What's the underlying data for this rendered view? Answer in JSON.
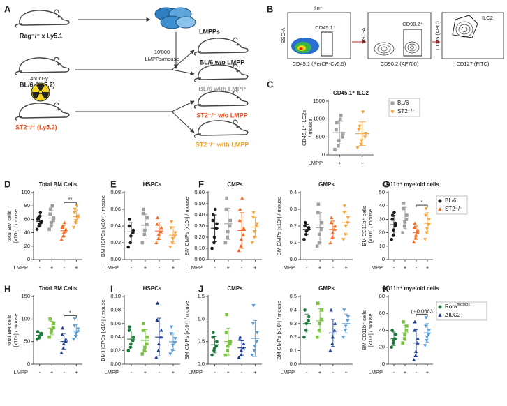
{
  "panel_labels": [
    "A",
    "B",
    "C",
    "D",
    "E",
    "F",
    "G",
    "H",
    "I",
    "J",
    "K"
  ],
  "diagram": {
    "donor": "Rag⁻/⁻ x Ly5.1",
    "cells": "LMPPs",
    "dose_1": "10'000",
    "dose_2": "LMPPs/mouse",
    "irradiation": "450cGy",
    "host_1": "BL/6 (Ly5.2)",
    "host_2": "ST2⁻/⁻ (Ly5.2)",
    "outcomes": [
      "BL/6 w/o LMPP",
      "BL/6 with LMPP",
      "ST2⁻/⁻ w/o LMPP",
      "ST2⁻/⁻ with LMPP"
    ]
  },
  "flow": {
    "title": "lin⁻",
    "plots": [
      {
        "gate": "CD45.1⁺",
        "ylabel": "SSC-A",
        "xlabel": "CD45.1 (PerCP-Cy5.5)"
      },
      {
        "gate": "CD90.2⁺",
        "ylabel": "SSC-A",
        "xlabel": "CD90.2 (AF700)"
      },
      {
        "gate": "ILC2",
        "ylabel": "CD25 (APC)",
        "xlabel": "CD127 (FITC)"
      }
    ]
  },
  "chart_data": [
    {
      "type": "strip",
      "title": "Total BM Cells",
      "ylabel": [
        "total BM cells",
        "[x10⁶] / mouse"
      ],
      "xlabel": "LMPP",
      "ylim": [
        0,
        100
      ],
      "yticks": [
        0,
        20,
        40,
        60,
        80,
        100
      ],
      "annotation": "**",
      "groups": [
        {
          "category": "-",
          "color": "#1a1a1a",
          "marker": "circle",
          "values": [
            45,
            50,
            52,
            55,
            57,
            60,
            62,
            65,
            70
          ],
          "mean": 57,
          "sd": 7
        },
        {
          "category": "+",
          "color": "#9e9e9e",
          "marker": "square",
          "values": [
            45,
            50,
            55,
            58,
            62,
            68,
            75,
            80
          ],
          "mean": 62,
          "sd": 11
        },
        {
          "category": "-",
          "color": "#f26b21",
          "marker": "triangle",
          "values": [
            30,
            35,
            40,
            42,
            45,
            48,
            50,
            55
          ],
          "mean": 43,
          "sd": 8
        },
        {
          "category": "+",
          "color": "#f7a43a",
          "marker": "invtriangle",
          "values": [
            48,
            55,
            58,
            62,
            65,
            70,
            75,
            80
          ],
          "mean": 64,
          "sd": 10
        }
      ]
    },
    {
      "type": "strip",
      "title": "HSPCs",
      "ylabel": [
        "BM HSPCs [x10⁶] / mouse"
      ],
      "xlabel": "LMPP",
      "ylim": [
        0,
        0.08
      ],
      "yticks": [
        {
          "value": 0,
          "label": "0.00"
        },
        {
          "value": 0.02,
          "label": "0.02"
        },
        {
          "value": 0.04,
          "label": "0.04"
        },
        {
          "value": 0.06,
          "label": "0.06"
        },
        {
          "value": 0.08,
          "label": "0.08"
        }
      ],
      "groups": [
        {
          "category": "-",
          "color": "#1a1a1a",
          "marker": "circle",
          "values": [
            0.015,
            0.02,
            0.028,
            0.032,
            0.035,
            0.04,
            0.048
          ],
          "mean": 0.033,
          "sd": 0.011
        },
        {
          "category": "+",
          "color": "#9e9e9e",
          "marker": "square",
          "values": [
            0.02,
            0.03,
            0.035,
            0.042,
            0.05,
            0.055,
            0.06
          ],
          "mean": 0.041,
          "sd": 0.013
        },
        {
          "category": "-",
          "color": "#f26b21",
          "marker": "triangle",
          "values": [
            0.02,
            0.025,
            0.03,
            0.033,
            0.038,
            0.042,
            0.05
          ],
          "mean": 0.034,
          "sd": 0.01
        },
        {
          "category": "+",
          "color": "#f7a43a",
          "marker": "invtriangle",
          "values": [
            0.015,
            0.02,
            0.025,
            0.028,
            0.032,
            0.038,
            0.045
          ],
          "mean": 0.029,
          "sd": 0.01
        }
      ]
    },
    {
      "type": "strip",
      "title": "CMPs",
      "ylabel": [
        "BM CMPs [x10⁶] / mouse"
      ],
      "xlabel": "LMPP",
      "ylim": [
        0,
        0.6
      ],
      "yticks": [
        {
          "value": 0,
          "label": "0.00"
        },
        {
          "value": 0.1,
          "label": "0.10"
        },
        {
          "value": 0.2,
          "label": "0.20"
        },
        {
          "value": 0.3,
          "label": "0.30"
        },
        {
          "value": 0.4,
          "label": "0.40"
        },
        {
          "value": 0.5,
          "label": "0.50"
        },
        {
          "value": 0.6,
          "label": "0.60"
        }
      ],
      "groups": [
        {
          "category": "-",
          "color": "#1a1a1a",
          "marker": "circle",
          "values": [
            0.1,
            0.15,
            0.2,
            0.28,
            0.32,
            0.35,
            0.4,
            0.45
          ],
          "mean": 0.28,
          "sd": 0.12
        },
        {
          "category": "+",
          "color": "#9e9e9e",
          "marker": "square",
          "values": [
            0.15,
            0.2,
            0.25,
            0.3,
            0.35,
            0.45,
            0.55
          ],
          "mean": 0.32,
          "sd": 0.14
        },
        {
          "category": "-",
          "color": "#f26b21",
          "marker": "triangle",
          "values": [
            0.08,
            0.12,
            0.18,
            0.22,
            0.28,
            0.35,
            0.45,
            0.55
          ],
          "mean": 0.26,
          "sd": 0.16
        },
        {
          "category": "+",
          "color": "#f7a43a",
          "marker": "invtriangle",
          "values": [
            0.15,
            0.2,
            0.25,
            0.3,
            0.32,
            0.38,
            0.42
          ],
          "mean": 0.29,
          "sd": 0.09
        }
      ]
    },
    {
      "type": "strip",
      "title": "GMPs",
      "ylabel": [
        "BM GMPs [x10⁶] / mouse"
      ],
      "xlabel": "LMPP",
      "ylim": [
        0,
        0.4
      ],
      "yticks": [
        {
          "value": 0,
          "label": "0.0"
        },
        0.1,
        0.2,
        0.3,
        0.4
      ],
      "groups": [
        {
          "category": "-",
          "color": "#1a1a1a",
          "marker": "circle",
          "values": [
            0.12,
            0.15,
            0.17,
            0.18,
            0.19,
            0.2,
            0.22
          ],
          "mean": 0.18,
          "sd": 0.03
        },
        {
          "category": "+",
          "color": "#9e9e9e",
          "marker": "square",
          "values": [
            0.08,
            0.1,
            0.15,
            0.18,
            0.22,
            0.28,
            0.33
          ],
          "mean": 0.19,
          "sd": 0.09
        },
        {
          "category": "-",
          "color": "#f26b21",
          "marker": "triangle",
          "values": [
            0.1,
            0.13,
            0.16,
            0.18,
            0.2,
            0.22,
            0.25
          ],
          "mean": 0.18,
          "sd": 0.05
        },
        {
          "category": "+",
          "color": "#f7a43a",
          "marker": "invtriangle",
          "values": [
            0.12,
            0.15,
            0.2,
            0.22,
            0.25,
            0.28,
            0.32
          ],
          "mean": 0.22,
          "sd": 0.07
        }
      ]
    },
    {
      "type": "strip",
      "title": "CD11b⁺ myeloid cells",
      "ylabel": [
        "BM CD11b⁺ cells",
        "[x10⁶] / mouse"
      ],
      "xlabel": "LMPP",
      "ylim": [
        0,
        50
      ],
      "yticks": [
        0,
        10,
        20,
        30,
        40,
        50
      ],
      "annotation": "*",
      "legend": [
        {
          "name": "BL/6",
          "color": "#1a1a1a",
          "marker": "circle"
        },
        {
          "name": "ST2⁻/⁻",
          "color": "#f26b21",
          "marker": "triangle"
        }
      ],
      "groups": [
        {
          "category": "-",
          "color": "#1a1a1a",
          "marker": "circle",
          "values": [
            15,
            18,
            22,
            25,
            27,
            30,
            33,
            35
          ],
          "mean": 26,
          "sd": 7
        },
        {
          "category": "+",
          "color": "#9e9e9e",
          "marker": "square",
          "values": [
            20,
            25,
            28,
            30,
            33,
            38,
            42
          ],
          "mean": 31,
          "sd": 8
        },
        {
          "category": "-",
          "color": "#f26b21",
          "marker": "triangle",
          "values": [
            13,
            16,
            18,
            20,
            22,
            24,
            27
          ],
          "mean": 20,
          "sd": 5
        },
        {
          "category": "+",
          "color": "#f7a43a",
          "marker": "invtriangle",
          "values": [
            15,
            20,
            23,
            26,
            30,
            33,
            38
          ],
          "mean": 27,
          "sd": 8
        }
      ]
    },
    {
      "type": "strip",
      "title": "Total BM Cells",
      "ylabel": [
        "total BM cells",
        "[x10⁶] / mouse"
      ],
      "xlabel": "LMPP",
      "ylim": [
        0,
        150
      ],
      "yticks": [
        0,
        50,
        100,
        150
      ],
      "annotation": "*",
      "groups": [
        {
          "category": "-",
          "color": "#1e7a3c",
          "marker": "circle",
          "values": [
            55,
            58,
            62,
            65,
            68,
            72
          ],
          "mean": 64,
          "sd": 6
        },
        {
          "category": "+",
          "color": "#7cc242",
          "marker": "square",
          "values": [
            60,
            70,
            75,
            80,
            90,
            100
          ],
          "mean": 80,
          "sd": 15
        },
        {
          "category": "-",
          "color": "#1f3e8f",
          "marker": "triangle",
          "values": [
            25,
            35,
            45,
            50,
            55,
            65,
            80
          ],
          "mean": 50,
          "sd": 18
        },
        {
          "category": "+",
          "color": "#5b9bd5",
          "marker": "invtriangle",
          "values": [
            55,
            62,
            68,
            72,
            78,
            85,
            100
          ],
          "mean": 73,
          "sd": 15
        }
      ]
    },
    {
      "type": "strip",
      "title": "HSPCs",
      "ylabel": [
        "BM HSPCs [x10⁶] / mouse"
      ],
      "xlabel": "LMPP",
      "ylim": [
        0,
        0.1
      ],
      "yticks": [
        {
          "value": 0,
          "label": "0.00"
        },
        {
          "value": 0.02,
          "label": "0.02"
        },
        {
          "value": 0.04,
          "label": "0.04"
        },
        {
          "value": 0.06,
          "label": "0.06"
        },
        {
          "value": 0.08,
          "label": "0.08"
        },
        {
          "value": 0.1,
          "label": "0.10"
        }
      ],
      "groups": [
        {
          "category": "-",
          "color": "#1e7a3c",
          "marker": "circle",
          "values": [
            0.02,
            0.025,
            0.03,
            0.035,
            0.04,
            0.05,
            0.055
          ],
          "mean": 0.037,
          "sd": 0.012
        },
        {
          "category": "+",
          "color": "#7cc242",
          "marker": "square",
          "values": [
            0.015,
            0.02,
            0.025,
            0.03,
            0.04,
            0.05,
            0.06
          ],
          "mean": 0.035,
          "sd": 0.016
        },
        {
          "category": "-",
          "color": "#1f3e8f",
          "marker": "triangle",
          "values": [
            0.01,
            0.02,
            0.03,
            0.04,
            0.05,
            0.065,
            0.09
          ],
          "mean": 0.04,
          "sd": 0.028
        },
        {
          "category": "+",
          "color": "#5b9bd5",
          "marker": "invtriangle",
          "values": [
            0.015,
            0.02,
            0.028,
            0.032,
            0.038,
            0.045,
            0.055
          ],
          "mean": 0.033,
          "sd": 0.013
        }
      ]
    },
    {
      "type": "strip",
      "title": "CMPs",
      "ylabel": [
        "BM CMPs [x10⁶] / mouse"
      ],
      "xlabel": "LMPP",
      "ylim": [
        0,
        1.5
      ],
      "yticks": [
        {
          "value": 0,
          "label": "0.0"
        },
        0.5,
        {
          "value": 1,
          "label": "1.0"
        },
        1.5
      ],
      "groups": [
        {
          "category": "-",
          "color": "#1e7a3c",
          "marker": "circle",
          "values": [
            0.2,
            0.3,
            0.35,
            0.4,
            0.5,
            0.6,
            0.7
          ],
          "mean": 0.43,
          "sd": 0.18
        },
        {
          "category": "+",
          "color": "#7cc242",
          "marker": "square",
          "values": [
            0.2,
            0.3,
            0.4,
            0.45,
            0.5,
            0.7,
            1.1
          ],
          "mean": 0.5,
          "sd": 0.3
        },
        {
          "category": "-",
          "color": "#1f3e8f",
          "marker": "triangle",
          "values": [
            0.15,
            0.2,
            0.3,
            0.35,
            0.45,
            0.55,
            0.6
          ],
          "mean": 0.36,
          "sd": 0.16
        },
        {
          "category": "+",
          "color": "#5b9bd5",
          "marker": "invtriangle",
          "values": [
            0.2,
            0.3,
            0.4,
            0.5,
            0.7,
            0.9,
            1.3
          ],
          "mean": 0.57,
          "sd": 0.4
        }
      ]
    },
    {
      "type": "strip",
      "title": "GMPs",
      "ylabel": [
        "BM GMPs [x10⁶] / mouse"
      ],
      "xlabel": "LMPP",
      "ylim": [
        0,
        0.5
      ],
      "yticks": [
        {
          "value": 0,
          "label": "0.0"
        },
        0.1,
        0.2,
        0.3,
        0.4,
        0.5
      ],
      "groups": [
        {
          "category": "-",
          "color": "#1e7a3c",
          "marker": "circle",
          "values": [
            0.2,
            0.25,
            0.3,
            0.32,
            0.35,
            0.4
          ],
          "mean": 0.3,
          "sd": 0.07
        },
        {
          "category": "+",
          "color": "#7cc242",
          "marker": "square",
          "values": [
            0.2,
            0.25,
            0.3,
            0.33,
            0.4,
            0.45
          ],
          "mean": 0.32,
          "sd": 0.09
        },
        {
          "category": "-",
          "color": "#1f3e8f",
          "marker": "triangle",
          "values": [
            0.1,
            0.15,
            0.2,
            0.25,
            0.3,
            0.4
          ],
          "mean": 0.23,
          "sd": 0.1
        },
        {
          "category": "+",
          "color": "#5b9bd5",
          "marker": "invtriangle",
          "values": [
            0.2,
            0.25,
            0.28,
            0.32,
            0.35,
            0.4
          ],
          "mean": 0.3,
          "sd": 0.07
        }
      ]
    },
    {
      "type": "strip",
      "title": "CD11b⁺ myeloid cells",
      "ylabel": [
        "BM CD11b⁺ cells",
        "[x10⁶] / mouse"
      ],
      "xlabel": "LMPP",
      "ylim": [
        0,
        80
      ],
      "yticks": [
        0,
        20,
        40,
        60,
        80
      ],
      "annotation": "p=0.0663",
      "legend": [
        {
          "name": "Rora",
          "sup": "flox/flox",
          "color": "#1e7a3c",
          "marker": "circle"
        },
        {
          "name": "ΔILC2",
          "color": "#1f3e8f",
          "marker": "triangle"
        }
      ],
      "groups": [
        {
          "category": "-",
          "color": "#1e7a3c",
          "marker": "circle",
          "values": [
            20,
            25,
            28,
            30,
            35,
            40
          ],
          "mean": 30,
          "sd": 8
        },
        {
          "category": "+",
          "color": "#7cc242",
          "marker": "square",
          "values": [
            25,
            30,
            35,
            40,
            45,
            50
          ],
          "mean": 37,
          "sd": 9
        },
        {
          "category": "-",
          "color": "#1f3e8f",
          "marker": "triangle",
          "values": [
            5,
            10,
            15,
            25,
            30,
            40,
            50
          ],
          "mean": 25,
          "sd": 16
        },
        {
          "category": "+",
          "color": "#5b9bd5",
          "marker": "invtriangle",
          "values": [
            22,
            28,
            32,
            35,
            40,
            45,
            55
          ],
          "mean": 37,
          "sd": 11
        }
      ]
    },
    {
      "type": "strip",
      "title": "CD45.1⁺ ILC2",
      "ylabel": [
        "CD45.1⁺ ILC2s",
        "/ mouse"
      ],
      "xlabel": "LMPP",
      "ylim": [
        0,
        1500
      ],
      "yticks": [
        0,
        500,
        1000,
        1500
      ],
      "legend": [
        {
          "name": "BL/6",
          "color": "#9e9e9e",
          "marker": "square"
        },
        {
          "name": "ST2⁻/⁻",
          "color": "#f7a43a",
          "marker": "invtriangle"
        }
      ],
      "groups": [
        {
          "category": "+",
          "color": "#9e9e9e",
          "marker": "square",
          "values": [
            150,
            250,
            400,
            500,
            600,
            700,
            900,
            1000,
            1100
          ],
          "mean": 620,
          "sd": 320
        },
        {
          "category": "+",
          "color": "#f7a43a",
          "marker": "invtriangle",
          "values": [
            200,
            300,
            400,
            500,
            600,
            700,
            800,
            1200
          ],
          "mean": 590,
          "sd": 330
        }
      ]
    }
  ]
}
